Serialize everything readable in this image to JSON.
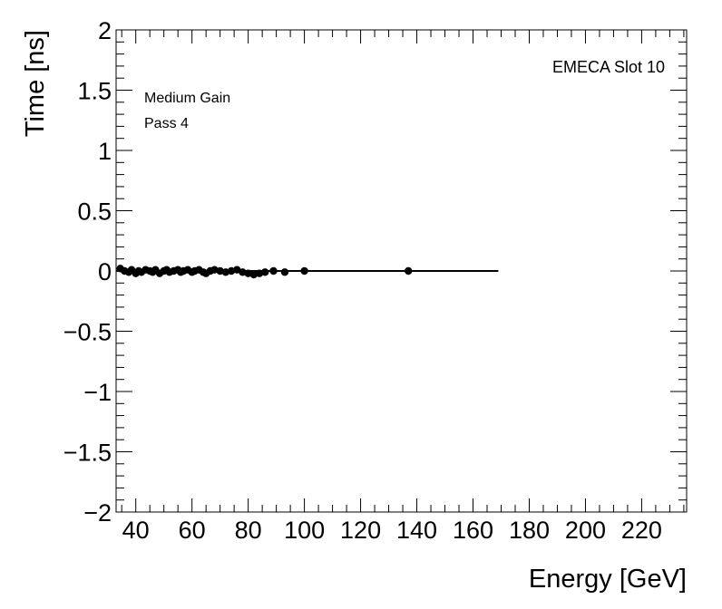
{
  "chart_data": {
    "type": "scatter",
    "xlabel": "Energy [GeV]",
    "ylabel": "Time [ns]",
    "xlim": [
      33,
      236
    ],
    "ylim": [
      -2,
      2
    ],
    "x_ticks": [
      40,
      60,
      80,
      100,
      120,
      140,
      160,
      180,
      200,
      220
    ],
    "y_ticks": [
      -2,
      -1.5,
      -1,
      -0.5,
      0,
      0.5,
      1,
      1.5,
      2
    ],
    "y_tick_labels": [
      "−2",
      "−1.5",
      "−1",
      "−0.5",
      "0",
      "0.5",
      "1",
      "1.5",
      "2"
    ],
    "annotations": {
      "top_right": "EMECA Slot 10",
      "line1": "Medium Gain",
      "line2": "Pass 4"
    },
    "fit_line": {
      "x": [
        33,
        169
      ],
      "y": [
        0.0,
        0.0
      ]
    },
    "points": {
      "x": [
        34.5,
        36.0,
        37.5,
        38.5,
        40.0,
        41.0,
        42.0,
        43.5,
        45.0,
        46.0,
        47.0,
        48.5,
        50.0,
        51.0,
        52.0,
        53.5,
        55.0,
        56.0,
        57.0,
        58.5,
        60.0,
        61.0,
        62.5,
        64.0,
        65.0,
        66.5,
        68.0,
        70.0,
        72.0,
        74.0,
        76.0,
        78.0,
        80.0,
        82.0,
        84.0,
        86.0,
        89.0,
        93.0,
        100.0,
        137.0
      ],
      "y": [
        0.02,
        0.0,
        -0.01,
        0.01,
        -0.02,
        0.0,
        -0.01,
        0.01,
        0.0,
        -0.01,
        0.01,
        -0.02,
        0.0,
        0.01,
        -0.01,
        0.0,
        0.01,
        -0.01,
        0.0,
        0.01,
        -0.01,
        0.0,
        0.01,
        -0.01,
        -0.02,
        0.0,
        0.01,
        0.0,
        -0.01,
        0.0,
        0.01,
        -0.01,
        -0.02,
        -0.03,
        -0.02,
        -0.01,
        0.0,
        -0.01,
        0.0,
        0.0
      ]
    },
    "grid": false,
    "legend": "none"
  }
}
